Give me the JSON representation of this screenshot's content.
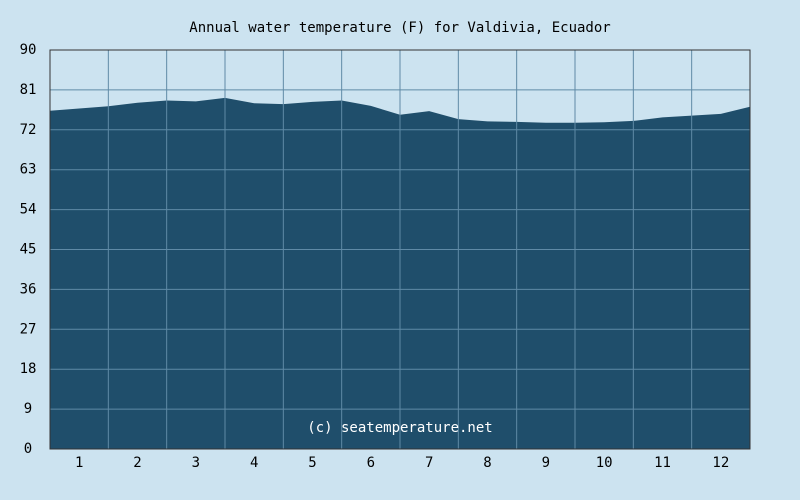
{
  "chart_data": {
    "type": "area",
    "title": "Annual water temperature (F) for Valdivia, Ecuador",
    "annotation": "(c) seatemperature.net",
    "x": [
      0,
      0.5,
      1,
      1.5,
      2,
      2.5,
      3,
      3.5,
      4,
      4.5,
      5,
      5.5,
      6,
      6.5,
      7,
      7.5,
      8,
      8.5,
      9,
      9.5,
      10,
      10.5,
      11,
      11.5,
      12
    ],
    "values": [
      76.3,
      76.8,
      77.3,
      78.1,
      78.6,
      78.4,
      79.2,
      78.0,
      77.8,
      78.3,
      78.6,
      77.4,
      75.4,
      76.2,
      74.4,
      73.9,
      73.8,
      73.6,
      73.6,
      73.7,
      74.0,
      74.8,
      75.2,
      75.6,
      77.2
    ],
    "color": "#1f4e6b",
    "xlim": [
      0,
      12
    ],
    "xticks": [
      {
        "value": 0.5,
        "label": "1"
      },
      {
        "value": 1.5,
        "label": "2"
      },
      {
        "value": 2.5,
        "label": "3"
      },
      {
        "value": 3.5,
        "label": "4"
      },
      {
        "value": 4.5,
        "label": "5"
      },
      {
        "value": 5.5,
        "label": "6"
      },
      {
        "value": 6.5,
        "label": "7"
      },
      {
        "value": 7.5,
        "label": "8"
      },
      {
        "value": 8.5,
        "label": "9"
      },
      {
        "value": 9.5,
        "label": "10"
      },
      {
        "value": 10.5,
        "label": "11"
      },
      {
        "value": 11.5,
        "label": "12"
      }
    ],
    "ylim": [
      0,
      90
    ],
    "yticks": [
      0,
      9,
      18,
      27,
      36,
      45,
      54,
      63,
      72,
      81,
      90
    ],
    "grid": true
  }
}
